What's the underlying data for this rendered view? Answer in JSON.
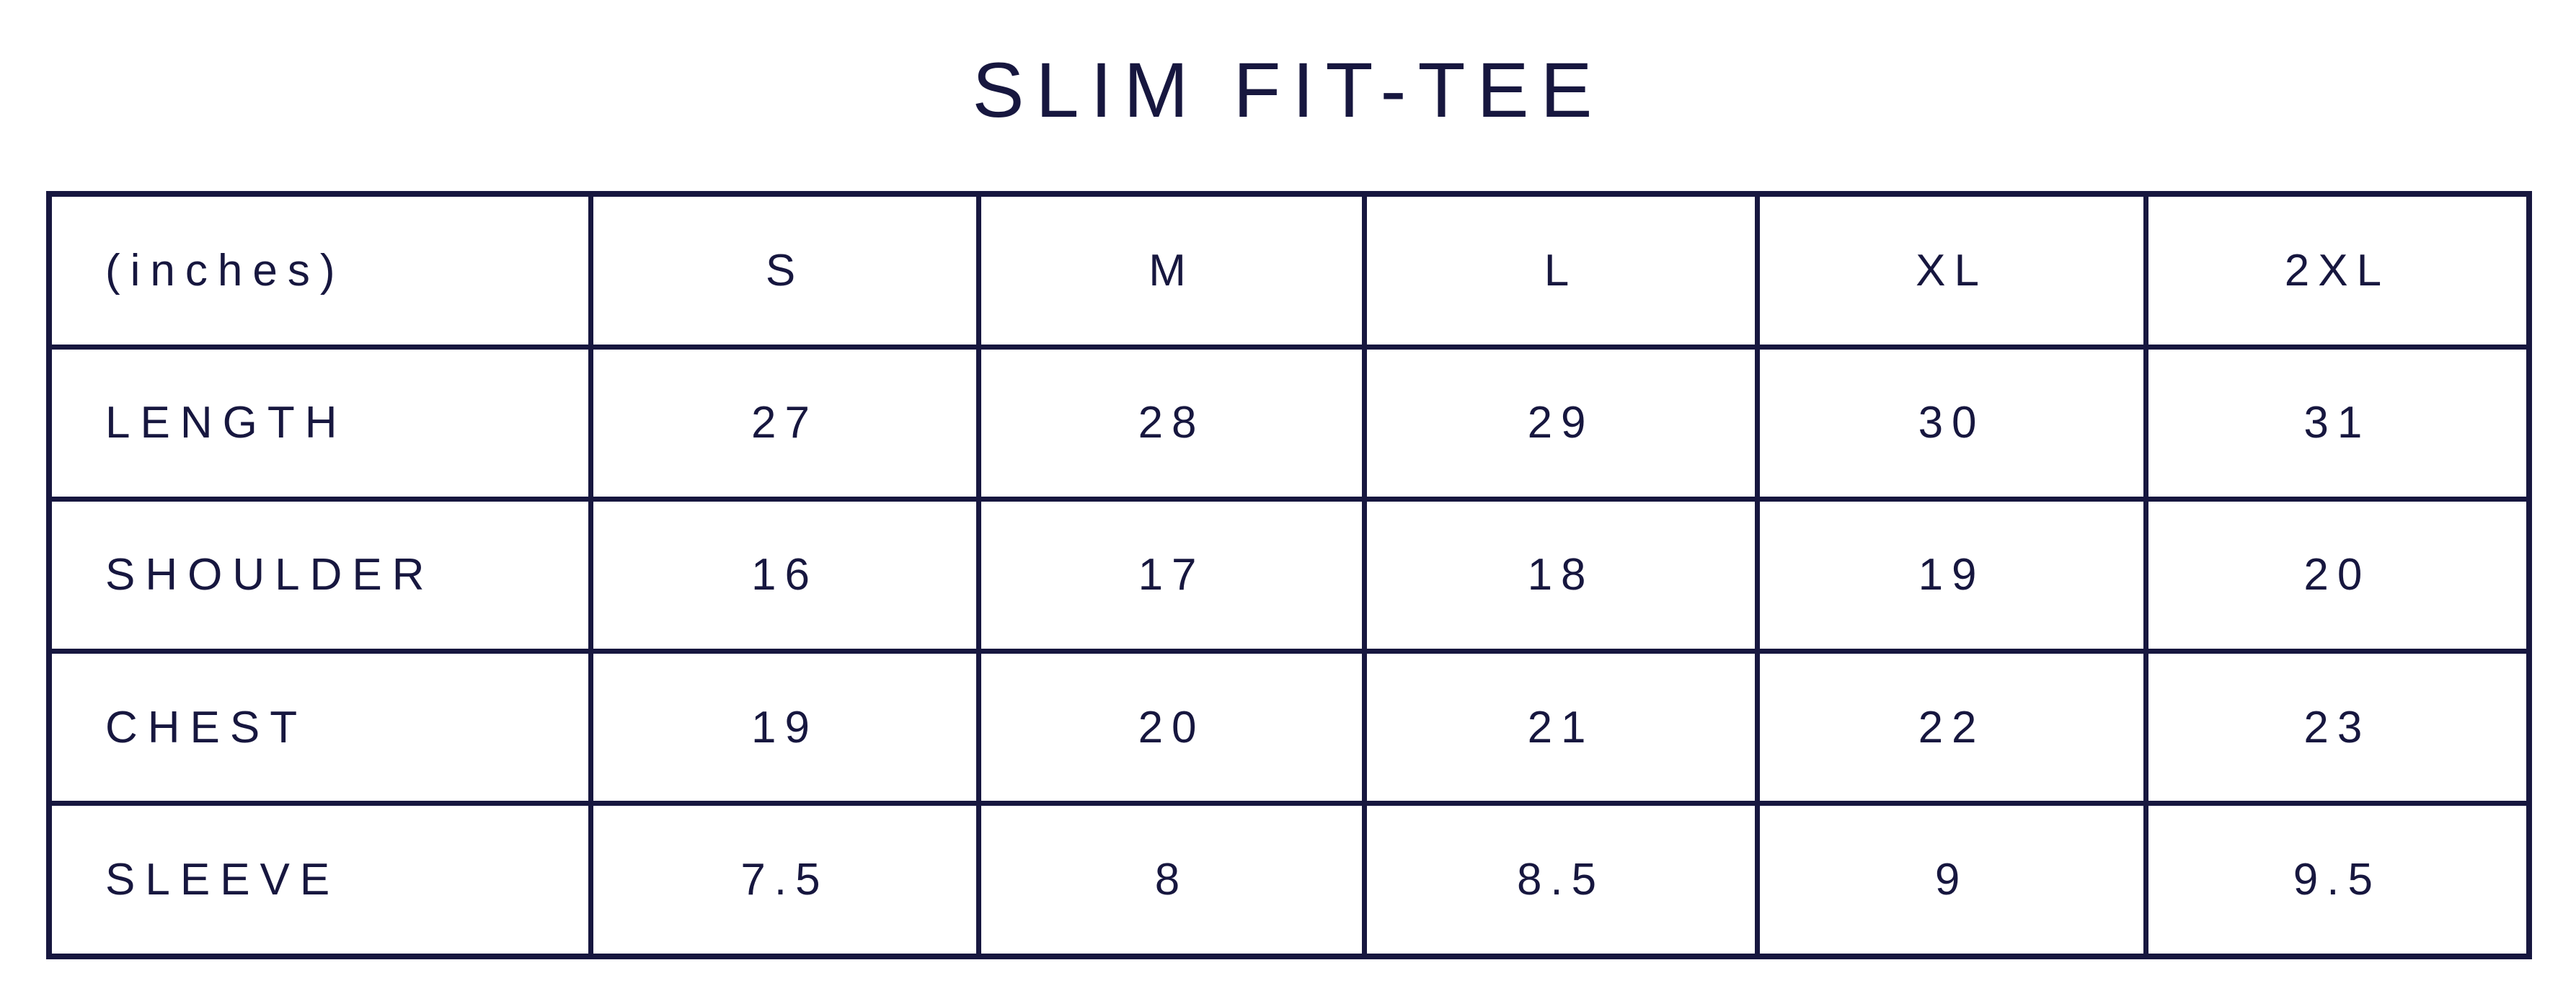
{
  "title": "SLIM FIT-TEE",
  "header": [
    "(inches)",
    "S",
    "M",
    "L",
    "XL",
    "2XL"
  ],
  "rows": [
    {
      "label": "LENGTH",
      "values": [
        "27",
        "28",
        "29",
        "30",
        "31"
      ]
    },
    {
      "label": "SHOULDER",
      "values": [
        "16",
        "17",
        "18",
        "19",
        "20"
      ]
    },
    {
      "label": "CHEST",
      "values": [
        "19",
        "20",
        "21",
        "22",
        "23"
      ]
    },
    {
      "label": "SLEEVE",
      "values": [
        "7.5",
        "8",
        "8.5",
        "9",
        "9.5"
      ]
    }
  ],
  "colors": {
    "ink": "#17173f",
    "background": "#ffffff"
  }
}
